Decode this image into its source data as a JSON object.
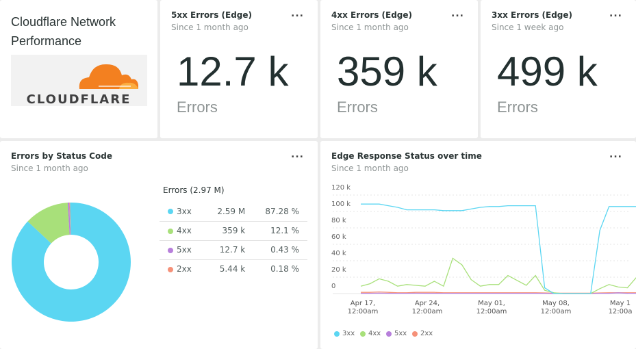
{
  "header": {
    "title_line1": "Cloudflare Network",
    "title_line2": "Performance",
    "logo_text": "CLOUDFLARE"
  },
  "billboards": [
    {
      "title": "5xx Errors (Edge)",
      "since": "Since 1 month ago",
      "value": "12.7 k",
      "unit": "Errors",
      "menu": "..."
    },
    {
      "title": "4xx Errors (Edge)",
      "since": "Since 1 month ago",
      "value": "359 k",
      "unit": "Errors",
      "menu": "..."
    },
    {
      "title": "3xx Errors (Edge)",
      "since": "Since 1 week ago",
      "value": "499 k",
      "unit": "Errors",
      "menu": "..."
    }
  ],
  "pie_panel": {
    "title": "Errors by Status Code",
    "since": "Since 1 month ago",
    "menu": "...",
    "table_header": "Errors (2.97 M)",
    "rows": [
      {
        "label": "3xx",
        "value": "2.59 M",
        "pct": "87.28 %",
        "color": "#5bd6f2"
      },
      {
        "label": "4xx",
        "value": "359 k",
        "pct": "12.1 %",
        "color": "#a8e07a"
      },
      {
        "label": "5xx",
        "value": "12.7 k",
        "pct": "0.43 %",
        "color": "#b77fdb"
      },
      {
        "label": "2xx",
        "value": "5.44 k",
        "pct": "0.18 %",
        "color": "#f59179"
      }
    ]
  },
  "line_panel": {
    "title": "Edge Response Status over time",
    "since": "Since 1 month ago",
    "menu": "..."
  },
  "chart_data": [
    {
      "type": "pie",
      "donut": true,
      "categories": [
        "3xx",
        "4xx",
        "5xx",
        "2xx"
      ],
      "values": [
        87.28,
        12.1,
        0.43,
        0.18
      ],
      "colors": [
        "#5bd6f2",
        "#a8e07a",
        "#b77fdb",
        "#f59179"
      ]
    },
    {
      "type": "line",
      "ylim": [
        0,
        120000
      ],
      "yticks": [
        "0",
        "20 k",
        "40 k",
        "60 k",
        "80 k",
        "100 k",
        "120 k"
      ],
      "grid": true,
      "legend": "bottom",
      "xticks": [
        {
          "day": 0,
          "label1": "Apr 17,",
          "label2": "12:00am"
        },
        {
          "day": 7,
          "label1": "Apr 24,",
          "label2": "12:00am"
        },
        {
          "day": 14,
          "label1": "May 01,",
          "label2": "12:00am"
        },
        {
          "day": 21,
          "label1": "May 08,",
          "label2": "12:00am"
        },
        {
          "day": 28,
          "label1": "May 1",
          "label2": "12:00a"
        }
      ],
      "x_start": "Apr 17",
      "series": [
        {
          "name": "3xx",
          "color": "#5bd6f2",
          "values": [
            109000,
            109000,
            109000,
            107000,
            105000,
            102000,
            102000,
            102000,
            102000,
            101000,
            101000,
            101000,
            103000,
            105000,
            106000,
            106000,
            107000,
            107000,
            107000,
            107000,
            7000,
            0,
            0,
            0,
            0,
            0,
            77000,
            106000,
            106000,
            106000,
            106000
          ]
        },
        {
          "name": "4xx",
          "color": "#a8e07a",
          "values": [
            9000,
            12000,
            18000,
            15000,
            9000,
            11000,
            10000,
            9000,
            15000,
            9000,
            43000,
            35000,
            17000,
            9000,
            11000,
            11000,
            22000,
            16000,
            10000,
            22000,
            4000,
            1000,
            0,
            0,
            0,
            0,
            6000,
            11000,
            8000,
            7000,
            20000
          ]
        },
        {
          "name": "5xx",
          "color": "#b77fdb",
          "values": [
            300,
            300,
            500,
            300,
            300,
            300,
            400,
            300,
            300,
            300,
            300,
            300,
            300,
            300,
            300,
            300,
            300,
            300,
            300,
            300,
            200,
            0,
            0,
            0,
            0,
            0,
            300,
            300,
            900,
            300,
            300
          ]
        },
        {
          "name": "2xx",
          "color": "#f59179",
          "values": [
            1500,
            1500,
            2000,
            1500,
            1000,
            1000,
            1500,
            1500,
            1500,
            1000,
            1000,
            1000,
            1000,
            1000,
            1000,
            1000,
            1000,
            1000,
            1000,
            1000,
            800,
            500,
            500,
            500,
            500,
            500,
            800,
            1000,
            1000,
            1000,
            1000
          ]
        }
      ]
    }
  ]
}
